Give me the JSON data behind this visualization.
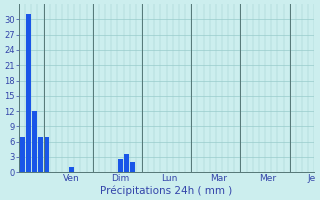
{
  "bar_values": [
    7,
    31,
    12,
    7,
    7,
    0,
    0,
    0,
    1,
    0,
    0,
    0,
    0,
    0,
    0,
    0,
    2.5,
    3.5,
    2,
    0,
    0,
    0,
    0,
    0,
    0,
    0,
    0,
    0,
    0,
    0,
    0,
    0,
    0,
    0,
    0,
    0,
    0,
    0,
    0,
    0,
    0,
    0,
    0,
    0,
    0,
    0,
    0,
    0
  ],
  "bar_color": "#1a56e8",
  "background_color": "#cceeee",
  "grid_minor_color": "#99cccc",
  "grid_major_color": "#557777",
  "xlabel": "Précipitations 24h ( mm )",
  "xlabel_color": "#3344aa",
  "tick_color": "#3344aa",
  "yticks": [
    0,
    3,
    6,
    9,
    12,
    15,
    18,
    21,
    24,
    27,
    30
  ],
  "ylim": [
    0,
    33
  ],
  "day_labels": [
    "Ven",
    "Dim",
    "Lun",
    "Mar",
    "Mer",
    "Je"
  ],
  "day_tick_positions": [
    8,
    16,
    24,
    32,
    40,
    47
  ],
  "day_sep_positions": [
    4,
    12,
    20,
    28,
    36,
    44
  ],
  "n_bars": 48,
  "figsize": [
    3.2,
    2.0
  ],
  "dpi": 100
}
